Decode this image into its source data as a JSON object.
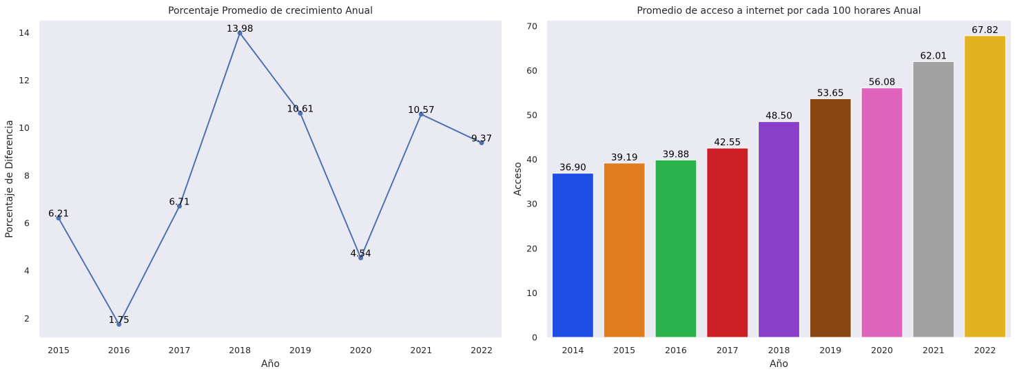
{
  "background": "#eaeaf2",
  "chart_data": [
    {
      "type": "line",
      "title": "Porcentaje Promedio de crecimiento Anual",
      "xlabel": "Año",
      "ylabel": "Porcentaje de Diferencia",
      "x": [
        "2015",
        "2016",
        "2017",
        "2018",
        "2019",
        "2020",
        "2021",
        "2022"
      ],
      "y": [
        6.21,
        1.75,
        6.71,
        13.98,
        10.61,
        4.54,
        10.57,
        9.37
      ],
      "data_labels": [
        "6.21",
        "1.75",
        "6.71",
        "13.98",
        "10.61",
        "4.54",
        "10.57",
        "9.37"
      ],
      "yticks": [
        2,
        4,
        6,
        8,
        10,
        12,
        14
      ],
      "ylim": [
        1.2,
        14.5
      ],
      "grid": false,
      "marker": true,
      "color": "#4c72b0"
    },
    {
      "type": "bar",
      "title": "Promedio de acceso a internet por cada 100 horares Anual",
      "xlabel": "Año",
      "ylabel": "Acceso",
      "categories": [
        "2014",
        "2015",
        "2016",
        "2017",
        "2018",
        "2019",
        "2020",
        "2021",
        "2022"
      ],
      "values": [
        36.9,
        39.19,
        39.88,
        42.55,
        48.5,
        53.65,
        56.08,
        62.01,
        67.82
      ],
      "data_labels": [
        "36.90",
        "39.19",
        "39.88",
        "42.55",
        "48.50",
        "53.65",
        "56.08",
        "62.01",
        "67.82"
      ],
      "colors": [
        "#1f4ee6",
        "#e07b1f",
        "#2ab34a",
        "#cc1f26",
        "#8a3fcb",
        "#8a4712",
        "#de63ba",
        "#a2a2a2",
        "#e2b221"
      ],
      "yticks": [
        0,
        10,
        20,
        30,
        40,
        50,
        60,
        70
      ],
      "ylim": [
        0,
        71.2
      ],
      "grid": false
    }
  ]
}
